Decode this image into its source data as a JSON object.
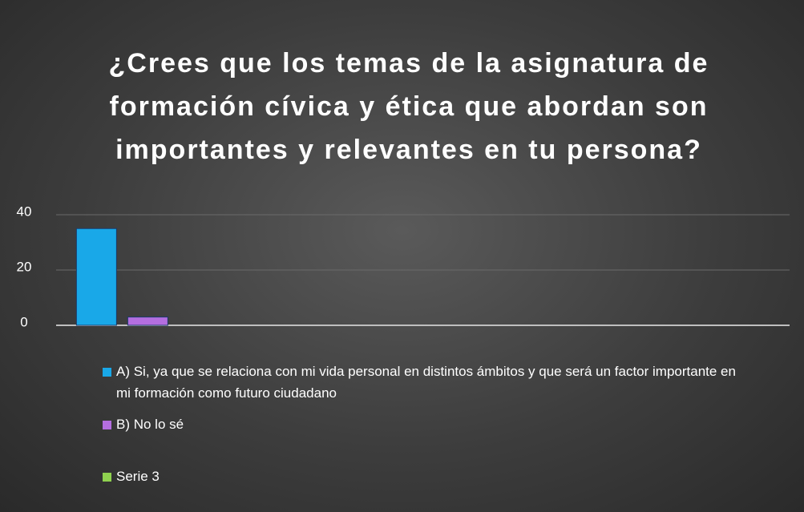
{
  "chart_data": {
    "type": "bar",
    "title": "¿Crees que los temas de la asignatura de formación cívica y ética que abordan son importantes y relevantes en tu persona?",
    "categories": [
      null,
      null,
      null,
      null
    ],
    "series": [
      {
        "name": "A) Si, ya que se relaciona con mi vida personal en distintos ámbitos y que será un factor importante en mi formación como futuro ciudadano",
        "color": "#19a8e8",
        "values": [
          35,
          null,
          null,
          null
        ]
      },
      {
        "name": "B) No lo sé",
        "color": "#b46ee0",
        "values": [
          3,
          null,
          null,
          null
        ]
      },
      {
        "name": "Serie 3",
        "color": "#8fd14f",
        "values": [
          null,
          null,
          null,
          null
        ]
      }
    ],
    "ylim": [
      0,
      40
    ],
    "yticks": [
      0,
      20,
      40
    ],
    "grid": true,
    "legend": "bottom"
  }
}
